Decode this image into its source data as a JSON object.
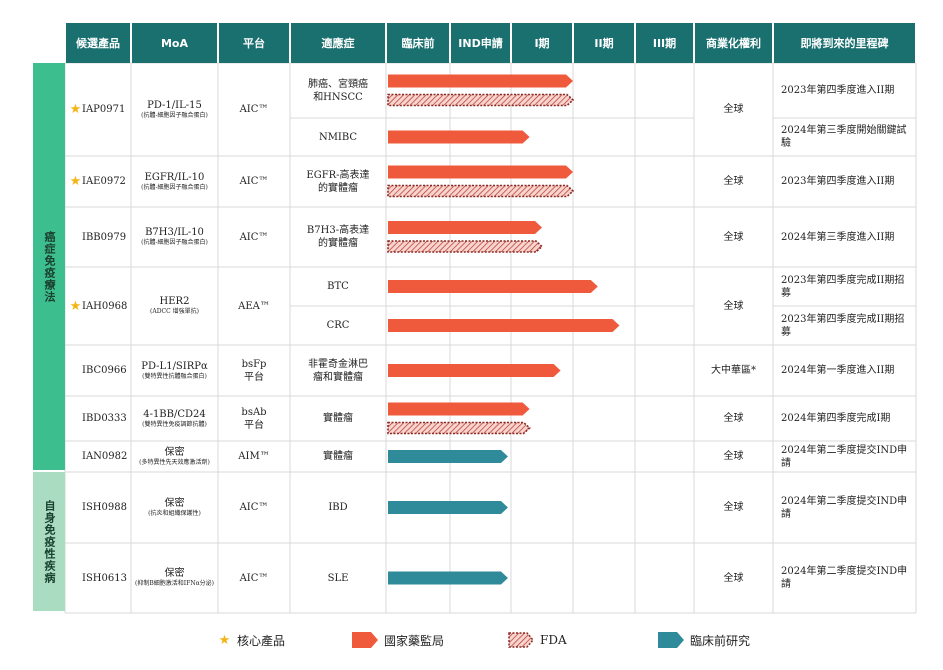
{
  "headers": [
    "候選產品",
    "MoA",
    "平台",
    "適應症",
    "臨床前",
    "IND申請",
    "I期",
    "II期",
    "III期",
    "商業化權利",
    "即將到來的里程碑"
  ],
  "groups": [
    {
      "label": "癌症免疫療法"
    },
    {
      "label": "自身免疫性疾病"
    }
  ],
  "products": [
    {
      "name": "IAP0971",
      "core": true,
      "moa": "PD-1/IL-15",
      "moa_sub": "(抗體-細胞因子融合蛋白)",
      "platform": "AIC™",
      "rights": "全球"
    },
    {
      "name": "IAE0972",
      "core": true,
      "moa": "EGFR/IL-10",
      "moa_sub": "(抗體-細胞因子融合蛋白)",
      "platform": "AIC™",
      "rights": "全球"
    },
    {
      "name": "IBB0979",
      "core": false,
      "moa": "B7H3/IL-10",
      "moa_sub": "(抗體-細胞因子融合蛋白)",
      "platform": "AIC™",
      "rights": "全球"
    },
    {
      "name": "IAH0968",
      "core": true,
      "moa": "HER2",
      "moa_sub": "(ADCC 增強單抗)",
      "platform": "AEA™",
      "rights": "全球"
    },
    {
      "name": "IBC0966",
      "core": false,
      "moa": "PD-L1/SIRPα",
      "moa_sub": "(雙特異性抗體融合蛋白)",
      "platform": "bsFp 平台",
      "rights": "大中華區*"
    },
    {
      "name": "IBD0333",
      "core": false,
      "moa": "4-1BB/CD24",
      "moa_sub": "(雙特異性免疫調節抗體)",
      "platform": "bsAb 平台",
      "rights": "全球"
    },
    {
      "name": "IAN0982",
      "core": false,
      "moa": "保密",
      "moa_sub": "(多特異性先天效應激活劑)",
      "platform": "AIM™",
      "rights": "全球"
    },
    {
      "name": "ISH0988",
      "core": false,
      "moa": "保密",
      "moa_sub": "(抗炎和組織保護性)",
      "platform": "AIC™",
      "rights": "全球"
    },
    {
      "name": "ISH0613",
      "core": false,
      "moa": "保密",
      "moa_sub": "(抑制B細胞激活和IFNα分泌)",
      "platform": "AIC™",
      "rights": "全球"
    }
  ],
  "indications": [
    {
      "label": "肺癌、宮頸癌和HNSCC",
      "nmpa_stage": 3.0,
      "fda_stage": 3.0,
      "preclinical_stage": null,
      "milestone": "2023年第四季度進入II期"
    },
    {
      "label": "NMIBC",
      "nmpa_stage": 2.3,
      "fda_stage": null,
      "preclinical_stage": null,
      "milestone": "2024年第三季度開始關鍵試驗"
    },
    {
      "label": "EGFR-高表達的實體瘤",
      "nmpa_stage": 3.0,
      "fda_stage": 3.0,
      "preclinical_stage": null,
      "milestone": "2023年第四季度進入II期"
    },
    {
      "label": "B7H3-高表達的實體瘤",
      "nmpa_stage": 2.5,
      "fda_stage": 2.5,
      "preclinical_stage": null,
      "milestone": "2024年第三季度進入II期"
    },
    {
      "label": "BTC",
      "nmpa_stage": 3.4,
      "fda_stage": null,
      "preclinical_stage": null,
      "milestone": "2023年第四季度完成II期招募"
    },
    {
      "label": "CRC",
      "nmpa_stage": 3.75,
      "fda_stage": null,
      "preclinical_stage": null,
      "milestone": "2023年第四季度完成II期招募"
    },
    {
      "label": "非霍奇金淋巴瘤和實體瘤",
      "nmpa_stage": 2.8,
      "fda_stage": null,
      "preclinical_stage": null,
      "milestone": "2024年第一季度進入II期"
    },
    {
      "label": "實體瘤",
      "nmpa_stage": 2.3,
      "fda_stage": 2.3,
      "preclinical_stage": null,
      "milestone": "2024年第四季度完成I期"
    },
    {
      "label": "實體瘤",
      "nmpa_stage": null,
      "fda_stage": null,
      "preclinical_stage": 1.95,
      "milestone": "2024年第二季度提交IND申請"
    },
    {
      "label": "IBD",
      "nmpa_stage": null,
      "fda_stage": null,
      "preclinical_stage": 1.95,
      "milestone": "2024年第二季度提交IND申請"
    },
    {
      "label": "SLE",
      "nmpa_stage": null,
      "fda_stage": null,
      "preclinical_stage": 1.95,
      "milestone": "2024年第二季度提交IND申請"
    }
  ],
  "legend": {
    "core": "核心產品",
    "nmpa": "國家藥監局",
    "fda": "FDA",
    "preclinical": "臨床前研究"
  },
  "colors": {
    "header": "#1a6f6f",
    "nmpa": "#f05a3c",
    "fda_fill": "#f7d4cd",
    "fda_stroke": "#b5342a",
    "preclinical": "#2f8a9a",
    "star": "#f3b515",
    "oncology_group": "#3dbe8e",
    "autoimmune_group": "#a9dcc0"
  }
}
